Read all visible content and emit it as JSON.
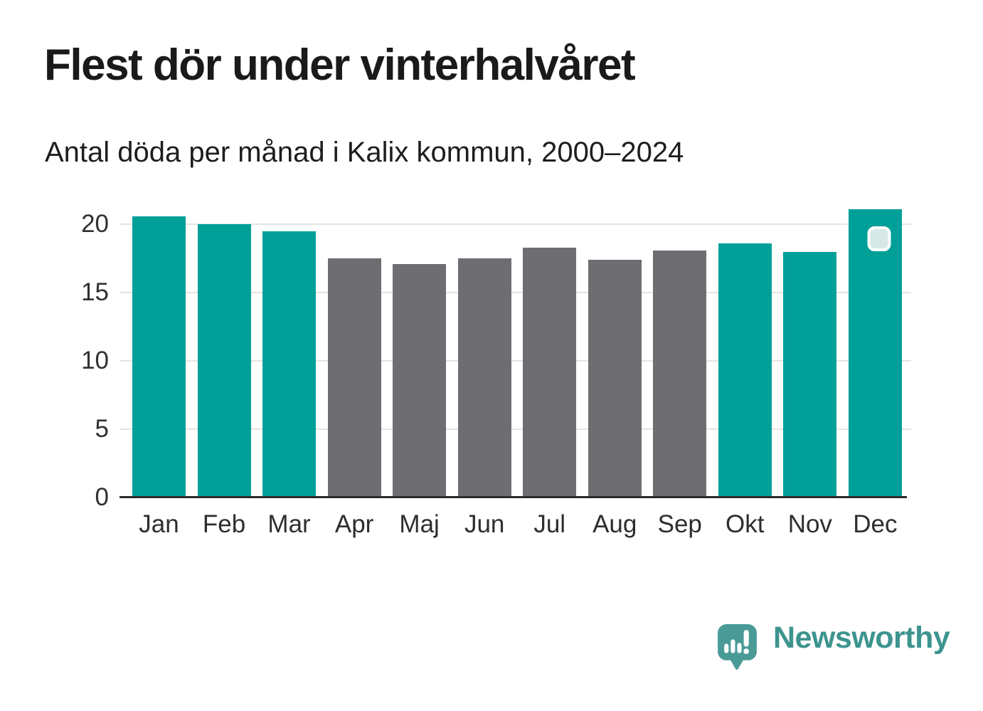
{
  "header": {
    "title": "Flest dör under vinterhalvåret",
    "subtitle": "Antal döda per månad i Kalix kommun, 2000–2024"
  },
  "chart_data": {
    "type": "bar",
    "title": "Flest dör under vinterhalvåret",
    "subtitle": "Antal döda per månad i Kalix kommun, 2000–2024",
    "categories": [
      "Jan",
      "Feb",
      "Mar",
      "Apr",
      "Maj",
      "Jun",
      "Jul",
      "Aug",
      "Sep",
      "Okt",
      "Nov",
      "Dec"
    ],
    "values": [
      20.6,
      20.0,
      19.5,
      17.5,
      17.1,
      17.5,
      18.3,
      17.4,
      18.1,
      18.6,
      18.0,
      21.1
    ],
    "bar_color_keys": [
      "teal",
      "teal",
      "teal",
      "gray",
      "gray",
      "gray",
      "gray",
      "gray",
      "gray",
      "teal",
      "teal",
      "teal"
    ],
    "colors": {
      "teal": "#00a099",
      "gray": "#6e6e72",
      "gridline": "#e4e4e4",
      "axis_line": "#2b2b2b",
      "badge_fill": "#d6e9e6",
      "badge_border": "#fcfefe"
    },
    "xlabel": "",
    "ylabel": "",
    "yticks": [
      0,
      5,
      10,
      15,
      20
    ],
    "ylim": [
      0,
      22
    ],
    "grid": "horizontal",
    "legend": "none",
    "badge": {
      "month": "Dec"
    }
  },
  "footer": {
    "brand": "Newsworthy",
    "brand_color": "#3d948f",
    "logo_icon_color": "#4a9b97",
    "logo_icon": "newsworthy-speech-bubble-bar-chart-icon"
  }
}
